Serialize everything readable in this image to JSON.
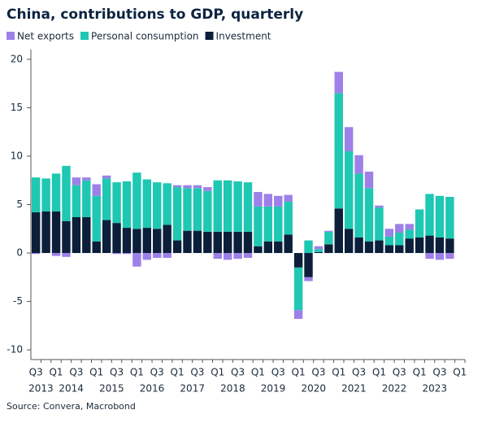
{
  "chart_data": {
    "type": "stacked_bar",
    "title": "China, contributions to GDP, quarterly",
    "source": "Source: Convera, Macrobond",
    "categories": [
      "Q3",
      null,
      "Q1",
      null,
      "Q3",
      null,
      "Q1",
      null,
      "Q3",
      null,
      "Q1",
      null,
      "Q3",
      null,
      "Q1",
      null,
      "Q3",
      null,
      "Q1",
      null,
      "Q3",
      null,
      "Q1",
      null,
      "Q3",
      null,
      "Q1",
      null,
      "Q3",
      null,
      "Q1",
      null,
      "Q3",
      null,
      "Q1",
      null,
      "Q3",
      null,
      "Q1",
      null,
      "Q3",
      null,
      "Q1"
    ],
    "years": [
      "2013",
      "2014",
      "2015",
      "2016",
      "2017",
      "2018",
      "2019",
      "2020",
      "2021",
      "2022",
      "2023"
    ],
    "series": [
      {
        "name": "Investment",
        "color": "#0b1f3a",
        "values": [
          4.2,
          4.3,
          4.3,
          3.3,
          3.7,
          3.7,
          1.2,
          3.4,
          3.1,
          2.6,
          2.5,
          2.6,
          2.5,
          2.9,
          1.3,
          2.3,
          2.3,
          2.2,
          2.2,
          2.2,
          2.2,
          2.2,
          0.7,
          1.2,
          1.2,
          1.9,
          -1.5,
          -2.5,
          0.1,
          0.9,
          4.6,
          2.5,
          1.6,
          1.2,
          1.3,
          0.8,
          0.8,
          1.5,
          1.6,
          1.8,
          1.6,
          1.5,
          null
        ]
      },
      {
        "name": "Personal consumption",
        "color": "#1ec8b2",
        "values": [
          3.6,
          3.4,
          3.9,
          5.7,
          3.3,
          3.8,
          4.7,
          4.3,
          4.2,
          4.8,
          5.8,
          5.0,
          4.8,
          4.3,
          5.5,
          4.4,
          4.4,
          4.2,
          5.3,
          5.3,
          5.2,
          5.1,
          4.1,
          3.6,
          3.6,
          3.4,
          -4.4,
          1.3,
          0.3,
          1.3,
          11.9,
          8.0,
          6.6,
          5.5,
          3.4,
          0.9,
          1.3,
          0.9,
          2.9,
          4.3,
          4.3,
          4.3,
          null
        ]
      },
      {
        "name": "Net exports",
        "color": "#9d80e8",
        "values": [
          -0.1,
          0,
          -0.3,
          -0.4,
          0.8,
          0.3,
          1.2,
          0.3,
          -0.1,
          -0.1,
          -1.4,
          -0.7,
          -0.5,
          -0.5,
          0.2,
          0.3,
          0.3,
          0.4,
          -0.6,
          -0.7,
          -0.6,
          -0.5,
          1.5,
          1.3,
          1.1,
          0.7,
          -0.9,
          -0.4,
          0.3,
          0.1,
          2.2,
          2.5,
          1.9,
          1.7,
          0.2,
          0.8,
          0.9,
          0.6,
          0,
          -0.6,
          -0.7,
          -0.6,
          null
        ]
      }
    ],
    "legend_order": [
      2,
      1,
      0
    ],
    "ylim": [
      -11,
      21
    ],
    "yticks": [
      -10,
      -5,
      0,
      5,
      10,
      15,
      20
    ]
  }
}
